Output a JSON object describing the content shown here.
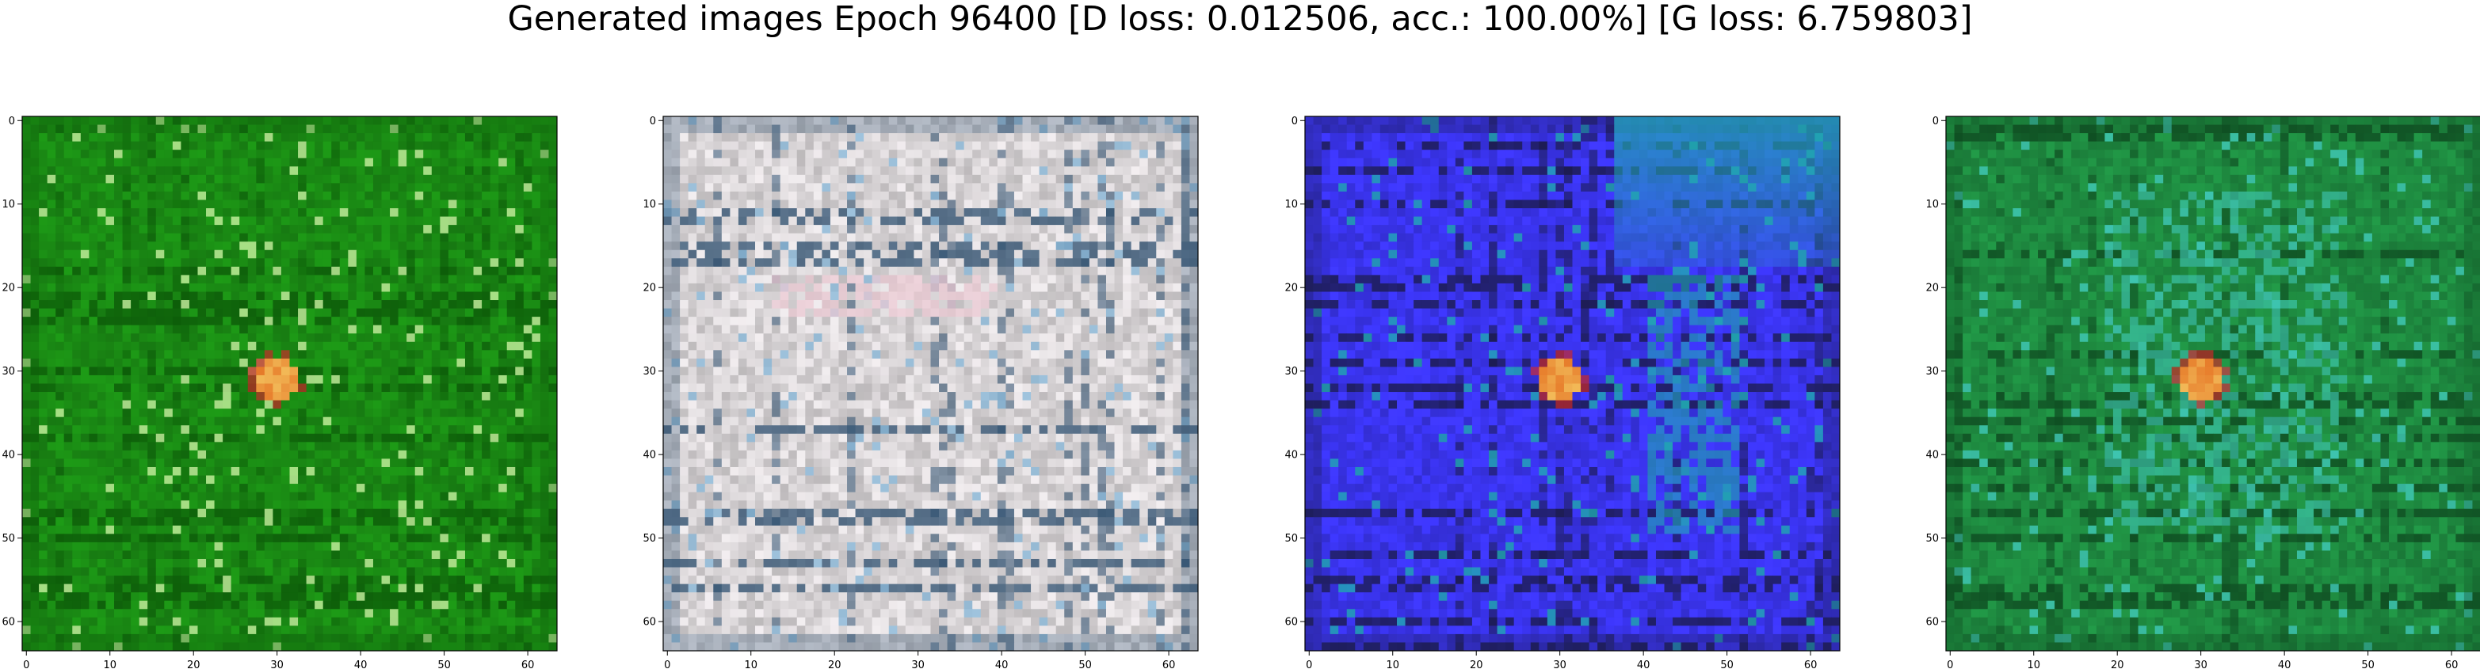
{
  "title": "Generated images Epoch 96400 [D loss: 0.012506, acc.: 100.00%] [G loss: 6.759803]",
  "chart_data": {
    "type": "heatmap",
    "layout": "1x4 image grid",
    "image_resolution": [
      64,
      64
    ],
    "xlim": [
      -0.5,
      63.5
    ],
    "ylim": [
      63.5,
      -0.5
    ],
    "x_ticks": [
      0,
      10,
      20,
      30,
      40,
      50,
      60
    ],
    "y_ticks": [
      0,
      10,
      20,
      30,
      40,
      50,
      60
    ],
    "panels": [
      {
        "id": "sample-1",
        "dominant_color": "#1a8a14",
        "accent_color": "#0c5a08",
        "highlight_color": "#c8f0a0",
        "center_blob": "orange-red",
        "blob_center": [
          30,
          31
        ]
      },
      {
        "id": "sample-2",
        "dominant_color": "#d8d4d6",
        "accent_color": "#2c4e6e",
        "highlight_color": "#8ab8d8",
        "center_blob": "none",
        "blob_center": [
          34,
          31
        ]
      },
      {
        "id": "sample-3",
        "dominant_color": "#3a34ee",
        "accent_color": "#1a1a44",
        "highlight_color": "#20a8b0",
        "center_blob": "orange-red",
        "blob_center": [
          30,
          31
        ]
      },
      {
        "id": "sample-4",
        "dominant_color": "#1e8a40",
        "accent_color": "#0e4a20",
        "highlight_color": "#40c8b8",
        "center_blob": "orange-red",
        "blob_center": [
          30,
          31
        ]
      }
    ]
  }
}
